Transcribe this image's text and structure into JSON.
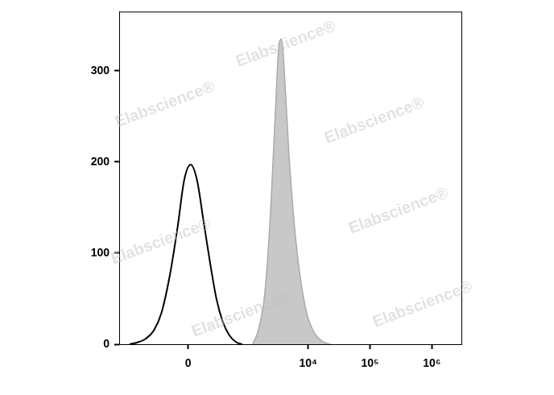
{
  "chart_data": {
    "type": "line",
    "annotations": [
      "Elabscience®"
    ],
    "xlim": [
      -1500,
      3000000
    ],
    "xticks": [
      0,
      {
        "value": 10000,
        "label": "10⁴"
      },
      {
        "value": 100000,
        "label": "10⁵"
      },
      {
        "value": 1000000,
        "label": "10⁶"
      }
    ],
    "ylim": [
      0,
      365
    ],
    "yticks": [
      0,
      100,
      200,
      300
    ],
    "grid": false,
    "series": [
      {
        "type": "line",
        "color": "#000000",
        "x": [
          -1014,
          -744,
          -538,
          -384,
          -268,
          -172,
          -92,
          -35,
          21,
          77,
          139,
          208,
          289,
          384,
          506,
          677,
          843
        ],
        "values": [
          0,
          2,
          6,
          15,
          35,
          75,
          130,
          180,
          197,
          180,
          135,
          90,
          50,
          25,
          10,
          2,
          0
        ]
      },
      {
        "type": "area",
        "color": "#c8c8c8",
        "x": [
          1257,
          1555,
          1980,
          2444,
          2929,
          3400,
          3720,
          4200,
          4880,
          6010,
          7410,
          9420,
          12700,
          17140,
          23100
        ],
        "values": [
          0,
          15,
          55,
          140,
          250,
          330,
          335,
          290,
          210,
          130,
          75,
          35,
          12,
          3,
          0
        ]
      }
    ]
  }
}
